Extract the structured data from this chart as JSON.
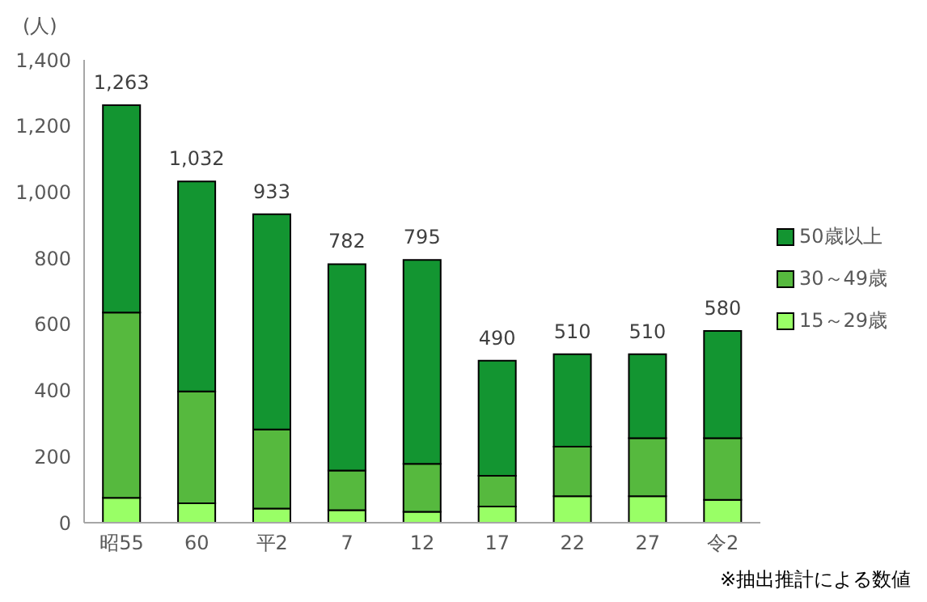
{
  "chart_data": {
    "type": "bar",
    "ylabel": "(人)",
    "categories": [
      "昭55",
      "60",
      "平2",
      "7",
      "12",
      "17",
      "22",
      "27",
      "令2"
    ],
    "stacked": true,
    "series": [
      {
        "name": "15～29歳",
        "color": "#99ff66",
        "values": [
          75,
          59,
          43,
          38,
          33,
          49,
          80,
          80,
          69
        ]
      },
      {
        "name": "30～49歳",
        "color": "#56b93e",
        "values": [
          561,
          338,
          239,
          120,
          145,
          93,
          150,
          176,
          187
        ]
      },
      {
        "name": "50歳以上",
        "color": "#139531",
        "values": [
          627,
          635,
          651,
          624,
          617,
          348,
          280,
          254,
          324
        ]
      }
    ],
    "totals": [
      "1,263",
      "1,032",
      "933",
      "782",
      "795",
      "490",
      "510",
      "510",
      "580"
    ],
    "ylim": [
      0,
      1400
    ],
    "yticks": [
      0,
      200,
      400,
      600,
      800,
      {
        "value": 1000,
        "label": "1,000"
      },
      {
        "value": 1200,
        "label": "1,200"
      },
      {
        "value": 1400,
        "label": "1,400"
      }
    ],
    "grid": false,
    "legend": "right",
    "annotations": [
      "※抽出推計による数値"
    ]
  }
}
